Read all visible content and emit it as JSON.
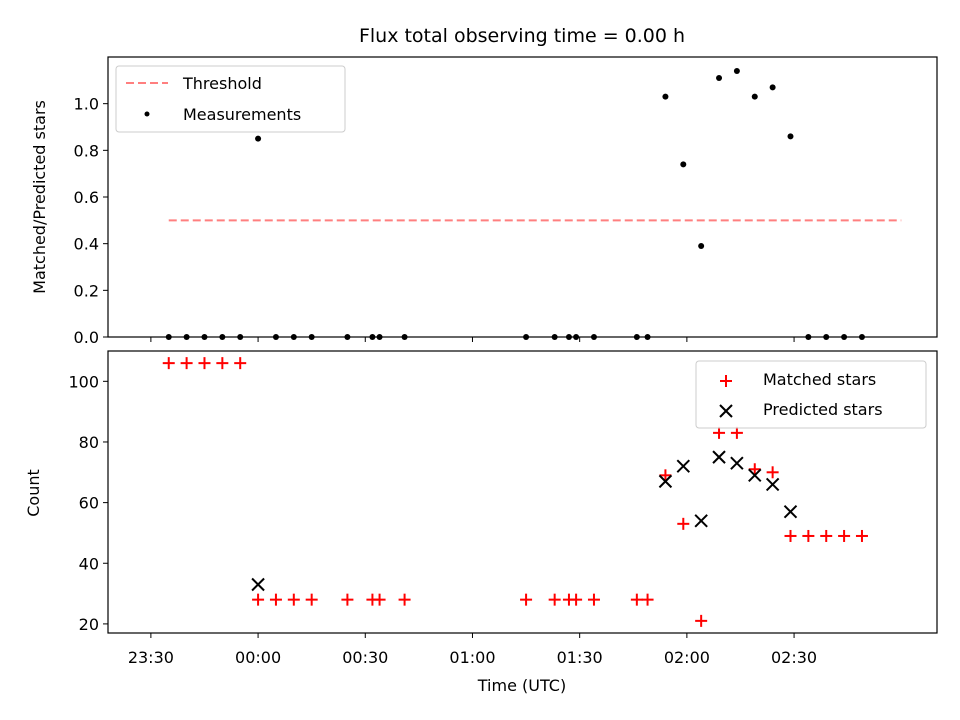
{
  "chart_data": [
    {
      "type": "scatter",
      "title": "Flux total observing time = 0.00 h",
      "xlabel": "",
      "ylabel": "Matched/Predicted stars",
      "ylim": [
        0,
        1.2
      ],
      "yticks": [
        0.0,
        0.2,
        0.4,
        0.6,
        0.8,
        1.0
      ],
      "ytick_labels": [
        "0.0",
        "0.2",
        "0.4",
        "0.6",
        "0.8",
        "1.0"
      ],
      "xlim": [
        "23:18",
        "03:10"
      ],
      "legend_position": "top-left",
      "colors": {
        "threshold": "#ff7f7f",
        "measurements": "#000000"
      },
      "series": [
        {
          "name": "Threshold",
          "style": "dashed-line",
          "x": [
            "23:35",
            "03:00"
          ],
          "y": [
            0.5,
            0.5
          ]
        },
        {
          "name": "Measurements",
          "style": "dot",
          "x": [
            "23:35",
            "23:40",
            "23:45",
            "23:50",
            "23:55",
            "00:00",
            "00:05",
            "00:10",
            "00:15",
            "00:25",
            "00:32",
            "00:34",
            "00:41",
            "01:15",
            "01:23",
            "01:27",
            "01:29",
            "01:34",
            "01:46",
            "01:49",
            "01:54",
            "01:59",
            "02:04",
            "02:09",
            "02:14",
            "02:19",
            "02:24",
            "02:29",
            "02:34",
            "02:39",
            "02:44",
            "02:49"
          ],
          "y": [
            0,
            0,
            0,
            0,
            0,
            0.85,
            0,
            0,
            0,
            0,
            0,
            0,
            0,
            0,
            0,
            0,
            0,
            0,
            0,
            0,
            1.03,
            0.74,
            0.39,
            1.11,
            1.14,
            1.03,
            1.07,
            0.86,
            0,
            0,
            0,
            0
          ]
        }
      ]
    },
    {
      "type": "scatter",
      "title": "",
      "xlabel": "Time (UTC)",
      "ylabel": "Count",
      "ylim": [
        17,
        110
      ],
      "yticks": [
        20,
        40,
        60,
        80,
        100
      ],
      "ytick_labels": [
        "20",
        "40",
        "60",
        "80",
        "100"
      ],
      "xlim": [
        "23:18",
        "03:10"
      ],
      "xticks": [
        "23:30",
        "00:00",
        "00:30",
        "01:00",
        "01:30",
        "02:00",
        "02:30"
      ],
      "legend_position": "top-right",
      "colors": {
        "matched": "#ff0000",
        "predicted": "#000000"
      },
      "series": [
        {
          "name": "Matched stars",
          "marker": "+",
          "x": [
            "23:35",
            "23:40",
            "23:45",
            "23:50",
            "23:55",
            "00:00",
            "00:05",
            "00:10",
            "00:15",
            "00:25",
            "00:32",
            "00:34",
            "00:41",
            "01:15",
            "01:23",
            "01:27",
            "01:29",
            "01:34",
            "01:46",
            "01:49",
            "01:54",
            "01:59",
            "02:04",
            "02:09",
            "02:14",
            "02:19",
            "02:24",
            "02:29",
            "02:34",
            "02:39",
            "02:44",
            "02:49"
          ],
          "y": [
            106,
            106,
            106,
            106,
            106,
            28,
            28,
            28,
            28,
            28,
            28,
            28,
            28,
            28,
            28,
            28,
            28,
            28,
            28,
            28,
            69,
            53,
            21,
            83,
            83,
            71,
            70,
            49,
            49,
            49,
            49,
            49
          ]
        },
        {
          "name": "Predicted stars",
          "marker": "x",
          "x": [
            "00:00",
            "01:54",
            "01:59",
            "02:04",
            "02:09",
            "02:14",
            "02:19",
            "02:24",
            "02:29"
          ],
          "y": [
            33,
            67,
            72,
            54,
            75,
            73,
            69,
            66,
            57
          ]
        }
      ]
    }
  ]
}
